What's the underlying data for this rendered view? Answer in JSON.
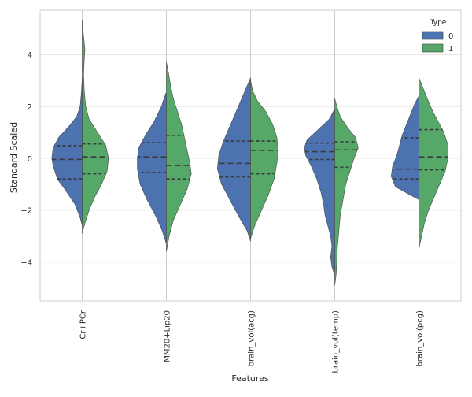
{
  "chart_data": {
    "type": "violin",
    "split": true,
    "xlabel": "Features",
    "ylabel": "Standard Scaled",
    "ylim": [
      -5.5,
      5.7
    ],
    "yticks": [
      -4,
      -2,
      0,
      2,
      4
    ],
    "grid": true,
    "legend": {
      "title": "Type",
      "position": "top-right",
      "entries": [
        {
          "label": "0",
          "color": "#4c72b0"
        },
        {
          "label": "1",
          "color": "#55a868"
        }
      ]
    },
    "categories": [
      "Cr+PCr",
      "MM20+Lip20",
      "brain_vol(acg)",
      "brain_vol(temp)",
      "brain_vol(pcg)"
    ],
    "series": [
      {
        "name": "0",
        "color": "#4c72b0",
        "side": "left",
        "violins": [
          {
            "profile": [
              [
                -2.6,
                0
              ],
              [
                -2.3,
                3
              ],
              [
                -1.8,
                10
              ],
              [
                -1.2,
                25
              ],
              [
                -0.8,
                36
              ],
              [
                -0.3,
                42
              ],
              [
                0.0,
                44
              ],
              [
                0.4,
                42
              ],
              [
                0.8,
                34
              ],
              [
                1.2,
                20
              ],
              [
                1.6,
                8
              ],
              [
                2.0,
                3
              ],
              [
                2.6,
                1
              ],
              [
                3.1,
                0
              ]
            ],
            "q1": -0.8,
            "median": -0.05,
            "q3": 0.48
          },
          {
            "profile": [
              [
                -3.3,
                0
              ],
              [
                -2.8,
                6
              ],
              [
                -2.2,
                16
              ],
              [
                -1.6,
                28
              ],
              [
                -1.0,
                38
              ],
              [
                -0.4,
                42
              ],
              [
                0.0,
                42
              ],
              [
                0.4,
                40
              ],
              [
                0.9,
                30
              ],
              [
                1.4,
                18
              ],
              [
                2.0,
                7
              ],
              [
                2.5,
                1
              ]
            ],
            "q1": -0.55,
            "median": 0.05,
            "q3": 0.6
          },
          {
            "profile": [
              [
                -3.2,
                0
              ],
              [
                -2.8,
                5
              ],
              [
                -2.2,
                18
              ],
              [
                -1.6,
                30
              ],
              [
                -1.0,
                42
              ],
              [
                -0.4,
                48
              ],
              [
                0.1,
                46
              ],
              [
                0.6,
                40
              ],
              [
                1.1,
                32
              ],
              [
                1.6,
                24
              ],
              [
                2.1,
                16
              ],
              [
                2.6,
                8
              ],
              [
                3.1,
                0
              ]
            ],
            "q1": -0.72,
            "median": -0.2,
            "q3": 0.66
          },
          {
            "profile": [
              [
                -4.5,
                0
              ],
              [
                -4.2,
                4
              ],
              [
                -3.8,
                6
              ],
              [
                -3.4,
                4
              ],
              [
                -3.0,
                6
              ],
              [
                -2.6,
                10
              ],
              [
                -2.2,
                14
              ],
              [
                -1.8,
                16
              ],
              [
                -1.3,
                20
              ],
              [
                -0.8,
                26
              ],
              [
                -0.3,
                34
              ],
              [
                0.1,
                42
              ],
              [
                0.4,
                44
              ],
              [
                0.7,
                40
              ],
              [
                1.1,
                24
              ],
              [
                1.5,
                8
              ],
              [
                1.9,
                0
              ]
            ],
            "q1": -0.05,
            "median": 0.25,
            "q3": 0.58
          },
          {
            "profile": [
              [
                -1.6,
                0
              ],
              [
                -1.4,
                14
              ],
              [
                -1.1,
                34
              ],
              [
                -0.7,
                40
              ],
              [
                -0.3,
                38
              ],
              [
                0.1,
                32
              ],
              [
                0.5,
                28
              ],
              [
                0.9,
                24
              ],
              [
                1.3,
                18
              ],
              [
                1.7,
                12
              ],
              [
                2.1,
                6
              ],
              [
                2.4,
                0
              ]
            ],
            "q1": -0.8,
            "median": -0.42,
            "q3": 0.78
          }
        ]
      },
      {
        "name": "1",
        "color": "#55a868",
        "side": "right",
        "violins": [
          {
            "profile": [
              [
                -2.9,
                0
              ],
              [
                -2.5,
                4
              ],
              [
                -2.0,
                10
              ],
              [
                -1.5,
                18
              ],
              [
                -1.0,
                28
              ],
              [
                -0.5,
                36
              ],
              [
                0.0,
                38
              ],
              [
                0.5,
                34
              ],
              [
                1.0,
                22
              ],
              [
                1.5,
                10
              ],
              [
                2.0,
                5
              ],
              [
                2.6,
                3
              ],
              [
                3.2,
                2
              ],
              [
                3.8,
                3
              ],
              [
                4.2,
                4
              ],
              [
                4.7,
                2
              ],
              [
                5.3,
                0
              ]
            ],
            "q1": -0.6,
            "median": 0.05,
            "q3": 0.55
          },
          {
            "profile": [
              [
                -3.6,
                0
              ],
              [
                -3.0,
                4
              ],
              [
                -2.4,
                10
              ],
              [
                -1.8,
                20
              ],
              [
                -1.2,
                30
              ],
              [
                -0.6,
                36
              ],
              [
                -0.2,
                34
              ],
              [
                0.3,
                30
              ],
              [
                0.8,
                26
              ],
              [
                1.3,
                22
              ],
              [
                1.8,
                16
              ],
              [
                2.3,
                10
              ],
              [
                2.8,
                6
              ],
              [
                3.3,
                3
              ],
              [
                3.7,
                0
              ]
            ],
            "q1": -0.8,
            "median": -0.28,
            "q3": 0.88
          },
          {
            "profile": [
              [
                -3.1,
                0
              ],
              [
                -2.6,
                6
              ],
              [
                -2.0,
                16
              ],
              [
                -1.4,
                26
              ],
              [
                -0.8,
                34
              ],
              [
                -0.2,
                38
              ],
              [
                0.3,
                40
              ],
              [
                0.8,
                38
              ],
              [
                1.3,
                32
              ],
              [
                1.8,
                22
              ],
              [
                2.2,
                10
              ],
              [
                2.6,
                3
              ],
              [
                3.0,
                0
              ]
            ],
            "q1": -0.6,
            "median": 0.3,
            "q3": 0.66
          },
          {
            "profile": [
              [
                -4.9,
                0
              ],
              [
                -4.5,
                2
              ],
              [
                -4.0,
                3
              ],
              [
                -3.4,
                4
              ],
              [
                -2.8,
                6
              ],
              [
                -2.2,
                8
              ],
              [
                -1.6,
                12
              ],
              [
                -1.0,
                16
              ],
              [
                -0.5,
                22
              ],
              [
                0.0,
                28
              ],
              [
                0.4,
                34
              ],
              [
                0.8,
                30
              ],
              [
                1.2,
                18
              ],
              [
                1.6,
                8
              ],
              [
                2.0,
                3
              ],
              [
                2.3,
                0
              ]
            ],
            "q1": -0.35,
            "median": 0.32,
            "q3": 0.63
          },
          {
            "profile": [
              [
                -3.5,
                0
              ],
              [
                -3.0,
                4
              ],
              [
                -2.5,
                8
              ],
              [
                -2.0,
                14
              ],
              [
                -1.5,
                22
              ],
              [
                -1.0,
                30
              ],
              [
                -0.5,
                38
              ],
              [
                0.0,
                42
              ],
              [
                0.5,
                42
              ],
              [
                1.0,
                36
              ],
              [
                1.4,
                28
              ],
              [
                1.8,
                20
              ],
              [
                2.3,
                12
              ],
              [
                2.7,
                6
              ],
              [
                3.1,
                0
              ]
            ],
            "q1": -0.45,
            "median": 0.05,
            "q3": 1.1
          }
        ]
      }
    ]
  }
}
